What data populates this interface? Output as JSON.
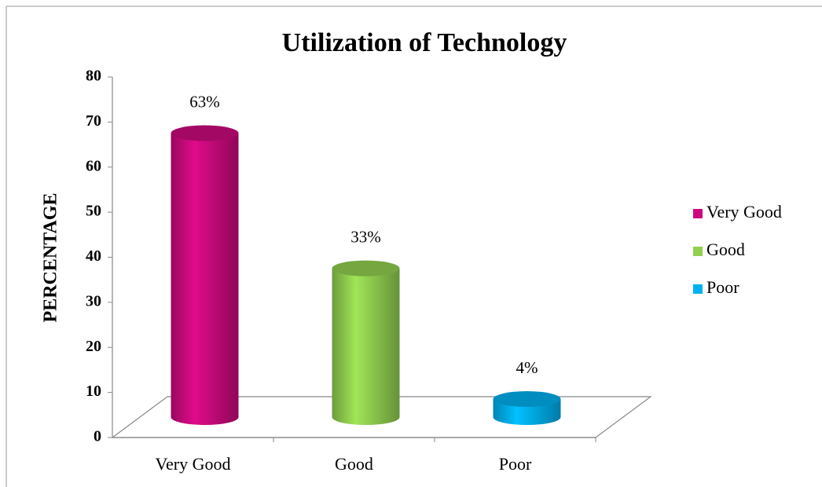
{
  "chart_data": {
    "type": "bar3d",
    "title": "Utilization of Technology",
    "y_label": "PERCENTAGE",
    "categories": [
      "Very Good",
      "Good",
      "Poor"
    ],
    "values": [
      63,
      33,
      4
    ],
    "value_labels": [
      "63%",
      "33%",
      "4%"
    ],
    "colors": [
      "#cc0a7e",
      "#92d050",
      "#00b0f0"
    ],
    "legend": "right",
    "ylim": [
      0,
      80
    ],
    "yticks": [
      0,
      10,
      20,
      30,
      40,
      50,
      60,
      70,
      80
    ]
  }
}
